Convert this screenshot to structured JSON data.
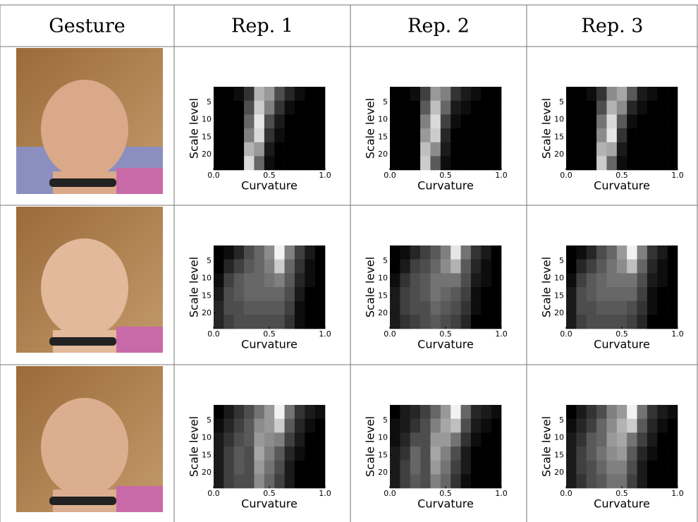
{
  "table": {
    "header": [
      "Gesture",
      "Rep. 1",
      "Rep. 2",
      "Rep. 3"
    ],
    "heatmap_axes": {
      "xlabel": "Curvature",
      "ylabel": "Scale level",
      "xlim": [
        0,
        1
      ],
      "ylim": [
        0.5,
        24.5
      ],
      "xticks": [
        {
          "value": 0,
          "label": "0.0"
        },
        {
          "value": 0.5,
          "label": "0.5"
        },
        {
          "value": 1,
          "label": "1.0"
        }
      ],
      "yticks": [
        5,
        10,
        15,
        20
      ]
    },
    "rows": [
      {
        "heatmaps": [
          {
            "z": [
              [
                0,
                0,
                0.05,
                0.2,
                0.7,
                0.6,
                0.3,
                0.15,
                0.05,
                0,
                0
              ],
              [
                0,
                0,
                0,
                0.3,
                0.8,
                0.5,
                0.2,
                0.05,
                0,
                0,
                0
              ],
              [
                0,
                0,
                0,
                0.4,
                0.9,
                0.3,
                0.1,
                0,
                0,
                0,
                0
              ],
              [
                0,
                0,
                0,
                0.5,
                0.85,
                0.2,
                0.05,
                0,
                0,
                0,
                0
              ],
              [
                0,
                0,
                0,
                0.7,
                0.6,
                0.1,
                0,
                0,
                0,
                0,
                0
              ],
              [
                0,
                0,
                0,
                0.85,
                0.4,
                0.05,
                0,
                0,
                0,
                0,
                0
              ]
            ]
          },
          {
            "z": [
              [
                0,
                0,
                0.05,
                0.25,
                0.6,
                0.5,
                0.2,
                0.1,
                0.05,
                0,
                0
              ],
              [
                0,
                0,
                0,
                0.35,
                0.75,
                0.4,
                0.1,
                0.05,
                0,
                0,
                0
              ],
              [
                0,
                0,
                0,
                0.5,
                0.85,
                0.25,
                0.05,
                0,
                0,
                0,
                0
              ],
              [
                0,
                0,
                0,
                0.6,
                0.8,
                0.15,
                0,
                0,
                0,
                0,
                0
              ],
              [
                0,
                0,
                0,
                0.75,
                0.55,
                0.1,
                0,
                0,
                0,
                0,
                0
              ],
              [
                0,
                0,
                0,
                0.8,
                0.35,
                0.05,
                0,
                0,
                0,
                0,
                0
              ]
            ]
          },
          {
            "z": [
              [
                0,
                0,
                0.05,
                0.2,
                0.55,
                0.65,
                0.35,
                0.1,
                0.05,
                0,
                0
              ],
              [
                0,
                0,
                0,
                0.3,
                0.7,
                0.55,
                0.15,
                0.05,
                0,
                0,
                0
              ],
              [
                0,
                0,
                0,
                0.45,
                0.85,
                0.35,
                0.05,
                0,
                0,
                0,
                0
              ],
              [
                0,
                0,
                0,
                0.55,
                0.9,
                0.2,
                0,
                0,
                0,
                0,
                0
              ],
              [
                0,
                0,
                0,
                0.7,
                0.65,
                0.1,
                0,
                0,
                0,
                0,
                0
              ],
              [
                0,
                0,
                0,
                0.8,
                0.4,
                0.05,
                0,
                0,
                0,
                0,
                0
              ]
            ]
          }
        ]
      },
      {
        "heatmaps": [
          {
            "z": [
              [
                0,
                0.05,
                0.15,
                0.3,
                0.4,
                0.55,
                0.95,
                0.5,
                0.25,
                0.1,
                0
              ],
              [
                0,
                0.15,
                0.25,
                0.35,
                0.4,
                0.5,
                0.8,
                0.4,
                0.2,
                0.05,
                0
              ],
              [
                0.05,
                0.25,
                0.35,
                0.4,
                0.4,
                0.45,
                0.5,
                0.35,
                0.15,
                0.05,
                0
              ],
              [
                0.1,
                0.3,
                0.35,
                0.4,
                0.4,
                0.4,
                0.4,
                0.3,
                0.1,
                0,
                0
              ],
              [
                0.15,
                0.3,
                0.3,
                0.35,
                0.35,
                0.35,
                0.35,
                0.25,
                0.05,
                0,
                0
              ],
              [
                0.15,
                0.25,
                0.3,
                0.3,
                0.3,
                0.3,
                0.3,
                0.2,
                0.05,
                0,
                0
              ]
            ]
          },
          {
            "z": [
              [
                0,
                0.05,
                0.15,
                0.25,
                0.35,
                0.5,
                0.9,
                0.45,
                0.2,
                0.1,
                0
              ],
              [
                0,
                0.1,
                0.25,
                0.3,
                0.4,
                0.55,
                0.7,
                0.35,
                0.15,
                0.05,
                0
              ],
              [
                0.05,
                0.2,
                0.3,
                0.35,
                0.45,
                0.45,
                0.45,
                0.3,
                0.1,
                0.05,
                0
              ],
              [
                0.1,
                0.25,
                0.3,
                0.35,
                0.45,
                0.4,
                0.35,
                0.25,
                0.05,
                0,
                0
              ],
              [
                0.1,
                0.25,
                0.3,
                0.3,
                0.4,
                0.35,
                0.3,
                0.2,
                0.05,
                0,
                0
              ],
              [
                0.1,
                0.2,
                0.25,
                0.3,
                0.35,
                0.3,
                0.25,
                0.15,
                0,
                0,
                0
              ]
            ]
          },
          {
            "z": [
              [
                0,
                0.05,
                0.15,
                0.3,
                0.4,
                0.6,
                0.95,
                0.5,
                0.2,
                0.1,
                0
              ],
              [
                0,
                0.15,
                0.25,
                0.35,
                0.45,
                0.55,
                0.75,
                0.4,
                0.15,
                0.05,
                0
              ],
              [
                0.05,
                0.25,
                0.35,
                0.4,
                0.45,
                0.45,
                0.45,
                0.3,
                0.1,
                0.05,
                0
              ],
              [
                0.1,
                0.3,
                0.35,
                0.4,
                0.4,
                0.4,
                0.4,
                0.25,
                0.05,
                0,
                0
              ],
              [
                0.1,
                0.3,
                0.3,
                0.35,
                0.35,
                0.35,
                0.3,
                0.2,
                0.05,
                0,
                0
              ],
              [
                0.1,
                0.25,
                0.3,
                0.3,
                0.3,
                0.3,
                0.25,
                0.15,
                0,
                0,
                0
              ]
            ]
          }
        ]
      },
      {
        "heatmaps": [
          {
            "z": [
              [
                0,
                0.1,
                0.2,
                0.3,
                0.45,
                0.6,
                0.95,
                0.45,
                0.2,
                0.1,
                0.05
              ],
              [
                0.05,
                0.15,
                0.25,
                0.35,
                0.55,
                0.6,
                0.8,
                0.35,
                0.15,
                0.05,
                0
              ],
              [
                0.1,
                0.2,
                0.3,
                0.35,
                0.6,
                0.55,
                0.5,
                0.25,
                0.1,
                0,
                0
              ],
              [
                0.1,
                0.25,
                0.35,
                0.3,
                0.65,
                0.5,
                0.35,
                0.15,
                0.05,
                0,
                0
              ],
              [
                0.1,
                0.25,
                0.35,
                0.3,
                0.6,
                0.45,
                0.3,
                0.1,
                0,
                0,
                0
              ],
              [
                0.1,
                0.25,
                0.3,
                0.3,
                0.55,
                0.4,
                0.25,
                0.1,
                0,
                0,
                0
              ]
            ]
          },
          {
            "z": [
              [
                0,
                0.1,
                0.15,
                0.25,
                0.4,
                0.6,
                0.95,
                0.4,
                0.15,
                0.1,
                0.05
              ],
              [
                0.05,
                0.1,
                0.2,
                0.3,
                0.5,
                0.65,
                0.75,
                0.3,
                0.1,
                0.05,
                0
              ],
              [
                0.05,
                0.15,
                0.3,
                0.3,
                0.6,
                0.6,
                0.45,
                0.2,
                0.05,
                0,
                0
              ],
              [
                0.1,
                0.2,
                0.4,
                0.3,
                0.65,
                0.5,
                0.3,
                0.1,
                0,
                0,
                0
              ],
              [
                0.1,
                0.25,
                0.4,
                0.3,
                0.6,
                0.45,
                0.25,
                0.1,
                0,
                0,
                0
              ],
              [
                0.1,
                0.25,
                0.35,
                0.3,
                0.5,
                0.4,
                0.2,
                0.05,
                0,
                0,
                0
              ]
            ]
          },
          {
            "z": [
              [
                0,
                0.1,
                0.2,
                0.3,
                0.5,
                0.6,
                0.95,
                0.45,
                0.2,
                0.1,
                0.05
              ],
              [
                0.05,
                0.15,
                0.25,
                0.4,
                0.55,
                0.7,
                0.8,
                0.35,
                0.15,
                0.05,
                0
              ],
              [
                0.1,
                0.2,
                0.35,
                0.4,
                0.6,
                0.65,
                0.45,
                0.25,
                0.1,
                0,
                0
              ],
              [
                0.1,
                0.25,
                0.35,
                0.45,
                0.55,
                0.6,
                0.35,
                0.15,
                0.05,
                0,
                0
              ],
              [
                0.1,
                0.25,
                0.3,
                0.4,
                0.5,
                0.5,
                0.3,
                0.1,
                0,
                0,
                0
              ],
              [
                0.1,
                0.2,
                0.3,
                0.35,
                0.45,
                0.45,
                0.25,
                0.1,
                0,
                0,
                0
              ]
            ]
          }
        ]
      }
    ]
  }
}
